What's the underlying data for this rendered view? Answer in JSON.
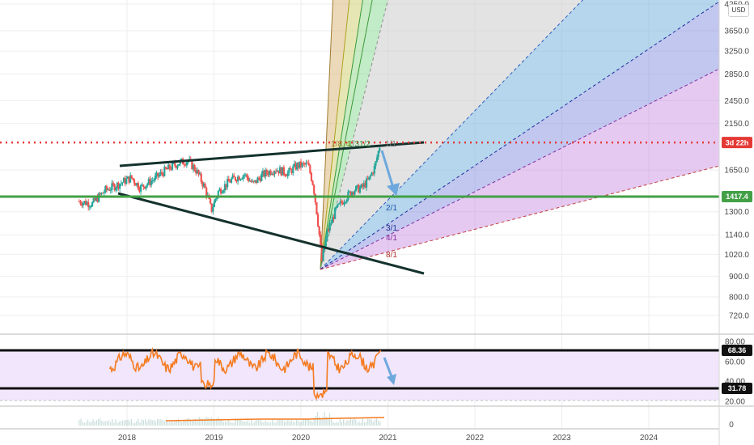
{
  "currency": "USD",
  "chart_data": {
    "type": "candlestick",
    "x_ticks": [
      "2018",
      "2019",
      "2020",
      "2021",
      "2022",
      "2023",
      "2024"
    ],
    "price_axis": {
      "scale": "log",
      "ticks": [
        "4250.0",
        "3650.0",
        "3250.0",
        "2850.0",
        "2450.0",
        "2150.0",
        "1650.0",
        "1300.0",
        "1140.0",
        "1020.0",
        "900.0",
        "800.0",
        "720.0"
      ]
    },
    "horizontal_levels": [
      {
        "label": "3d 22h",
        "value": 1930,
        "color": "#e53935",
        "style": "dotted"
      },
      {
        "label": "1417.4",
        "value": 1417.4,
        "color": "#43a047",
        "style": "solid"
      }
    ],
    "fan_labels": [
      "1/1",
      "1/2",
      "1/3",
      "1/4",
      "1/8",
      "2/1",
      "3/1",
      "4/1",
      "8/1"
    ],
    "rsi": {
      "ticks": [
        "80.00",
        "60.00",
        "40.00",
        "20.00"
      ],
      "levels": [
        {
          "label": "68.36",
          "value": 68.36
        },
        {
          "label": "31.78",
          "value": 31.78
        }
      ]
    },
    "volume": {
      "ticks": [
        "0"
      ]
    }
  }
}
